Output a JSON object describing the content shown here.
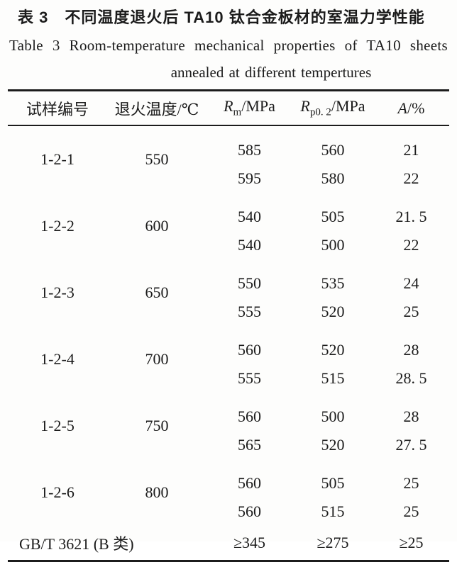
{
  "page": {
    "title_zh": "表 3　不同温度退火后 TA10 钛合金板材的室温力学性能",
    "title_en_line1": "Table 3  Room-temperature mechanical properties of TA10 sheets",
    "title_en_line2": "annealed at different tempertures"
  },
  "table": {
    "header": {
      "col_sample": "试样编号",
      "col_temp": "退火温度/℃",
      "col_rm": {
        "sym": "R",
        "sub": "m",
        "unit": "/MPa"
      },
      "col_rp": {
        "sym": "R",
        "sub": "p0. 2",
        "unit": "/MPa"
      },
      "col_a": {
        "sym": "A",
        "unit": "/%"
      }
    },
    "groups": [
      {
        "sample": "1-2-1",
        "temp": "550",
        "rows": [
          [
            "585",
            "560",
            "21"
          ],
          [
            "595",
            "580",
            "22"
          ]
        ]
      },
      {
        "sample": "1-2-2",
        "temp": "600",
        "rows": [
          [
            "540",
            "505",
            "21. 5"
          ],
          [
            "540",
            "500",
            "22"
          ]
        ]
      },
      {
        "sample": "1-2-3",
        "temp": "650",
        "rows": [
          [
            "550",
            "535",
            "24"
          ],
          [
            "555",
            "520",
            "25"
          ]
        ]
      },
      {
        "sample": "1-2-4",
        "temp": "700",
        "rows": [
          [
            "560",
            "520",
            "28"
          ],
          [
            "555",
            "515",
            "28. 5"
          ]
        ]
      },
      {
        "sample": "1-2-5",
        "temp": "750",
        "rows": [
          [
            "560",
            "500",
            "28"
          ],
          [
            "565",
            "520",
            "27. 5"
          ]
        ]
      },
      {
        "sample": "1-2-6",
        "temp": "800",
        "rows": [
          [
            "560",
            "505",
            "25"
          ],
          [
            "560",
            "515",
            "25"
          ]
        ]
      }
    ],
    "footer": {
      "label": "GB/T 3621 (B 类)",
      "values": [
        "≥345",
        "≥275",
        "≥25"
      ]
    }
  }
}
